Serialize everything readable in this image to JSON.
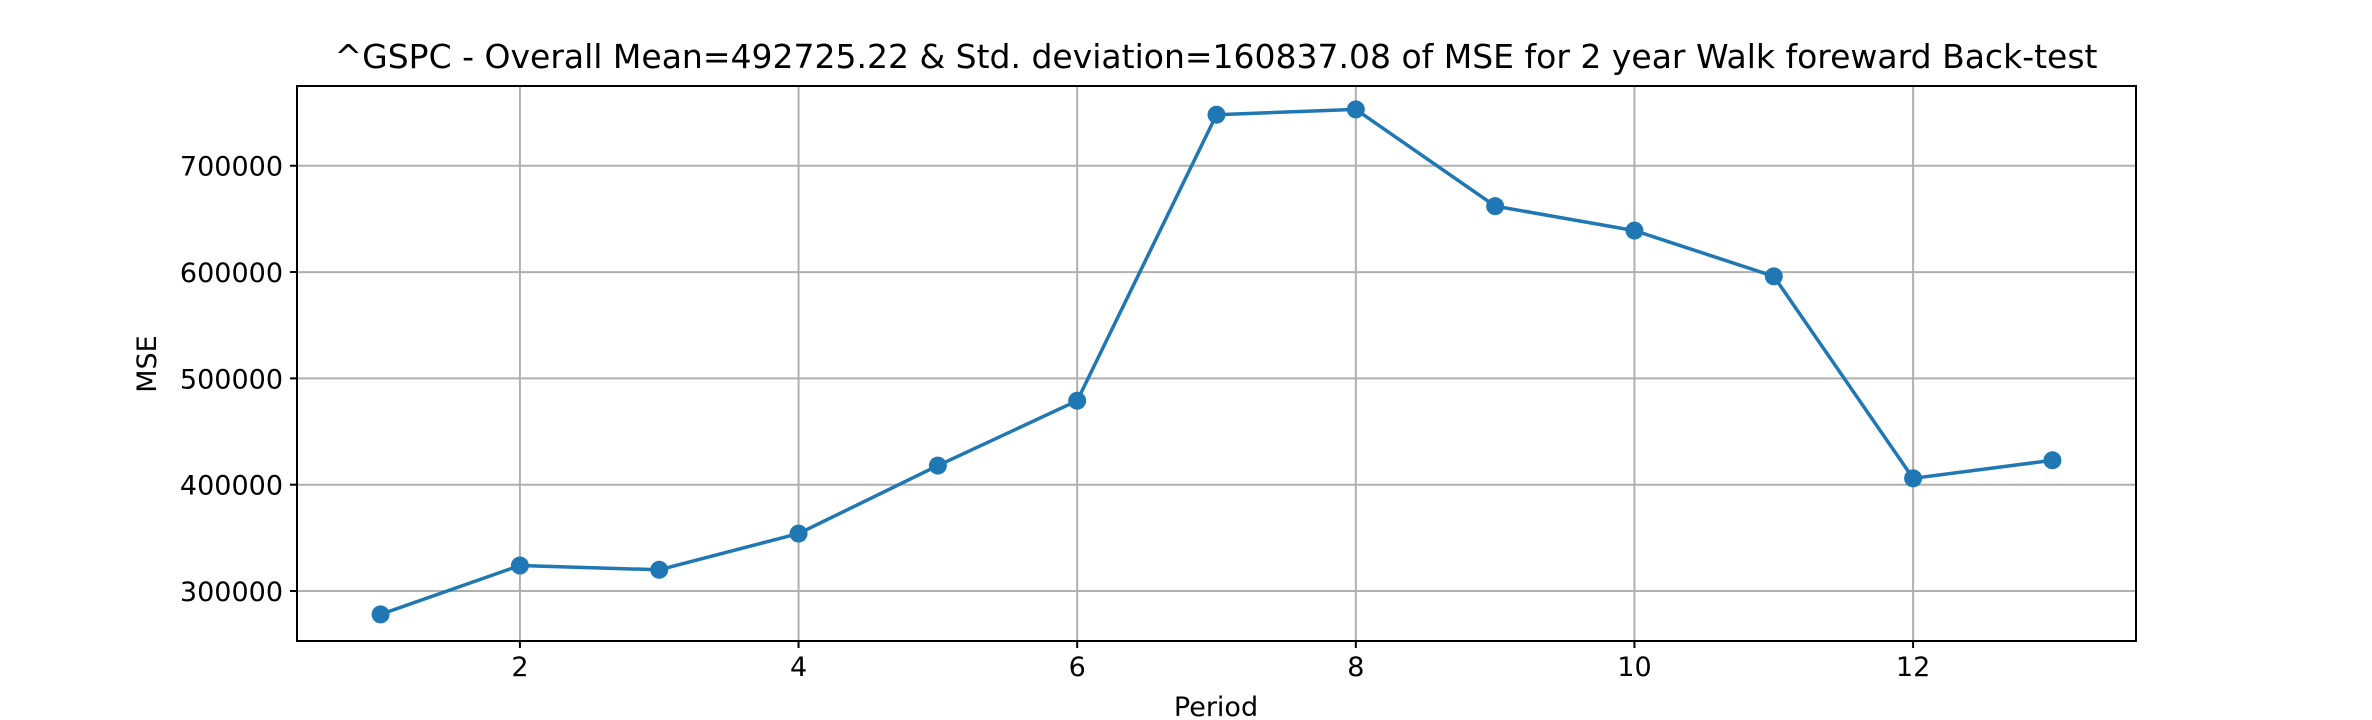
{
  "chart_data": {
    "type": "line",
    "title": "^GSPC - Overall Mean=492725.22 & Std. deviation=160837.08 of MSE for 2 year Walk foreward Back-test",
    "xlabel": "Period",
    "ylabel": "MSE",
    "xlim": [
      0.4,
      13.6
    ],
    "ylim": [
      253000,
      775000
    ],
    "x_ticks": [
      2,
      4,
      6,
      8,
      10,
      12
    ],
    "y_ticks": [
      300000,
      400000,
      500000,
      600000,
      700000
    ],
    "grid": true,
    "series": [
      {
        "color": "#1f77b4",
        "marker": "circle",
        "x": [
          1,
          2,
          3,
          4,
          5,
          6,
          7,
          8,
          9,
          10,
          11,
          12,
          13
        ],
        "y": [
          278000,
          324000,
          320000,
          354000,
          418000,
          479000,
          748000,
          753000,
          662000,
          639000,
          596000,
          406000,
          423000
        ]
      }
    ]
  }
}
